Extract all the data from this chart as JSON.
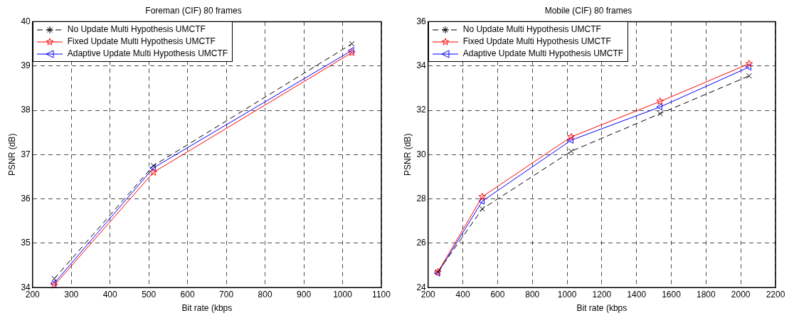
{
  "chart_data": [
    {
      "type": "line",
      "title": "Foreman (CIF) 80 frames",
      "xlabel": "Bit rate (kbps",
      "ylabel": "PSNR (dB)",
      "xlim": [
        200,
        1100
      ],
      "xticks": [
        200,
        300,
        400,
        500,
        600,
        700,
        800,
        900,
        1000,
        1100
      ],
      "ylim": [
        34,
        40
      ],
      "yticks": [
        34,
        35,
        36,
        37,
        38,
        39,
        40
      ],
      "grid": true,
      "legend": "top left",
      "series": [
        {
          "name": "No Update Multi Hypothesis UMCTF",
          "color": "#000000",
          "marker": "cross",
          "line_style": "dashed",
          "x": [
            256,
            512,
            1024
          ],
          "values": [
            34.2,
            36.75,
            39.5
          ]
        },
        {
          "name": "Fixed Update Multi Hypothesis UMCTF",
          "color": "#ff0000",
          "marker": "star",
          "line_style": "solid",
          "x": [
            256,
            512,
            1024
          ],
          "values": [
            34.05,
            36.6,
            39.3
          ]
        },
        {
          "name": "Adaptive Update Multi Hypothesis UMCTF",
          "color": "#0000ff",
          "marker": "triangle",
          "line_style": "solid",
          "x": [
            256,
            512,
            1024
          ],
          "values": [
            34.1,
            36.7,
            39.35
          ]
        }
      ]
    },
    {
      "type": "line",
      "title": "Mobile (CIF) 80 frames",
      "xlabel": "Bit rate (kbps",
      "ylabel": "PSNR (dB)",
      "xlim": [
        200,
        2200
      ],
      "xticks": [
        200,
        400,
        600,
        800,
        1000,
        1200,
        1400,
        1600,
        1800,
        2000,
        2200
      ],
      "ylim": [
        24,
        36
      ],
      "yticks": [
        24,
        26,
        28,
        30,
        32,
        34,
        36
      ],
      "grid": true,
      "legend": "top left",
      "series": [
        {
          "name": "No Update Multi Hypothesis UMCTF",
          "color": "#000000",
          "marker": "cross",
          "line_style": "dashed",
          "x": [
            256,
            512,
            1024,
            1536,
            2048
          ],
          "values": [
            24.7,
            27.55,
            30.15,
            31.85,
            33.55
          ]
        },
        {
          "name": "Fixed Update Multi Hypothesis UMCTF",
          "color": "#ff0000",
          "marker": "star",
          "line_style": "solid",
          "x": [
            256,
            512,
            1024,
            1536,
            2048
          ],
          "values": [
            24.7,
            28.1,
            30.8,
            32.4,
            34.1
          ]
        },
        {
          "name": "Adaptive Update Multi Hypothesis UMCTF",
          "color": "#0000ff",
          "marker": "triangle",
          "line_style": "solid",
          "x": [
            256,
            512,
            1024,
            1536,
            2048
          ],
          "values": [
            24.65,
            27.9,
            30.65,
            32.15,
            33.95
          ]
        }
      ]
    }
  ]
}
